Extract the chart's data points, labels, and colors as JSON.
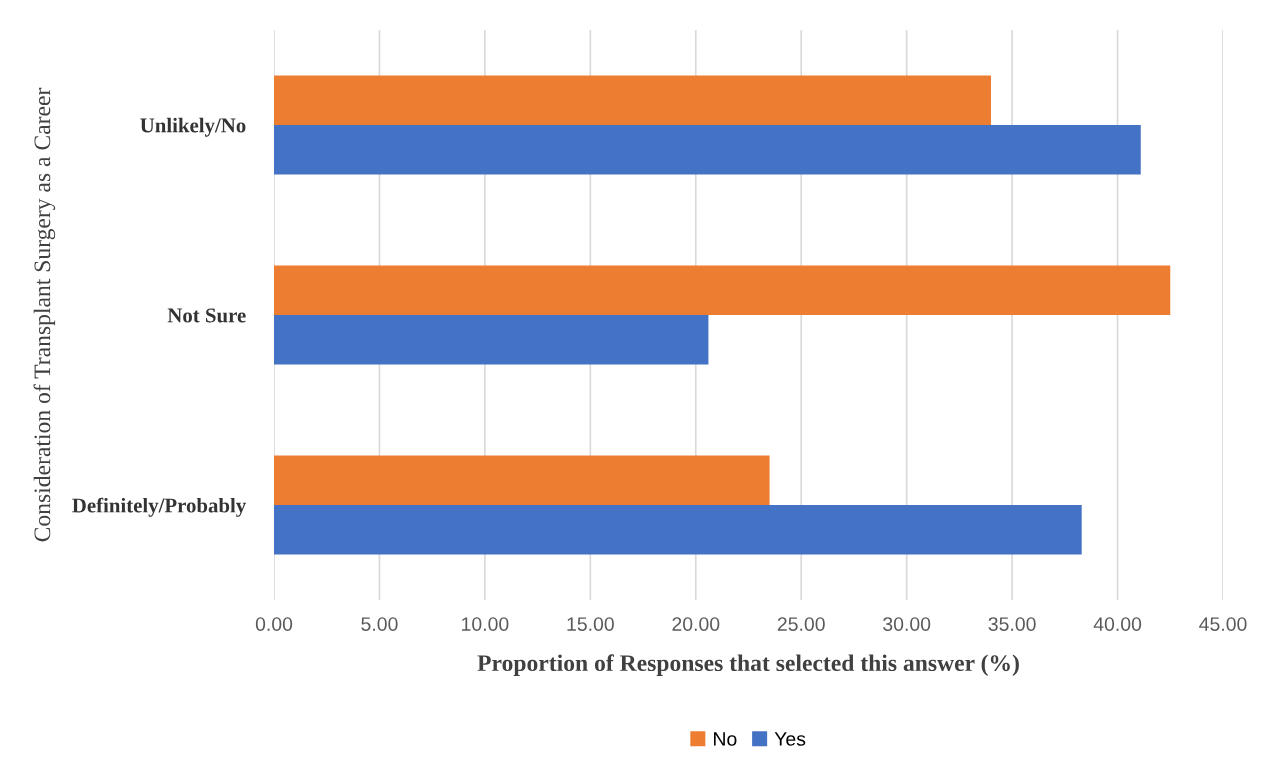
{
  "chart_data": {
    "type": "bar",
    "orientation": "horizontal",
    "xlabel": "Proportion of Responses that selected this answer (%)",
    "ylabel": "Consideration of Transplant Surgery as a Career",
    "categories": [
      "Unlikely/No",
      "Not Sure",
      "Definitely/Probably"
    ],
    "series": [
      {
        "name": "No",
        "color": "#ed7d31",
        "values": [
          34.0,
          42.5,
          23.5
        ]
      },
      {
        "name": "Yes",
        "color": "#4472c4",
        "values": [
          41.1,
          20.6,
          38.3
        ]
      }
    ],
    "xlim": [
      0,
      45
    ],
    "xticks": [
      {
        "value": 0,
        "label": "0.00"
      },
      {
        "value": 5,
        "label": "5.00"
      },
      {
        "value": 10,
        "label": "10.00"
      },
      {
        "value": 15,
        "label": "15.00"
      },
      {
        "value": 20,
        "label": "20.00"
      },
      {
        "value": 25,
        "label": "25.00"
      },
      {
        "value": 30,
        "label": "30.00"
      },
      {
        "value": 35,
        "label": "35.00"
      },
      {
        "value": 40,
        "label": "40.00"
      },
      {
        "value": 45,
        "label": "45.00"
      }
    ],
    "grid": "x",
    "legend": "bottom"
  }
}
